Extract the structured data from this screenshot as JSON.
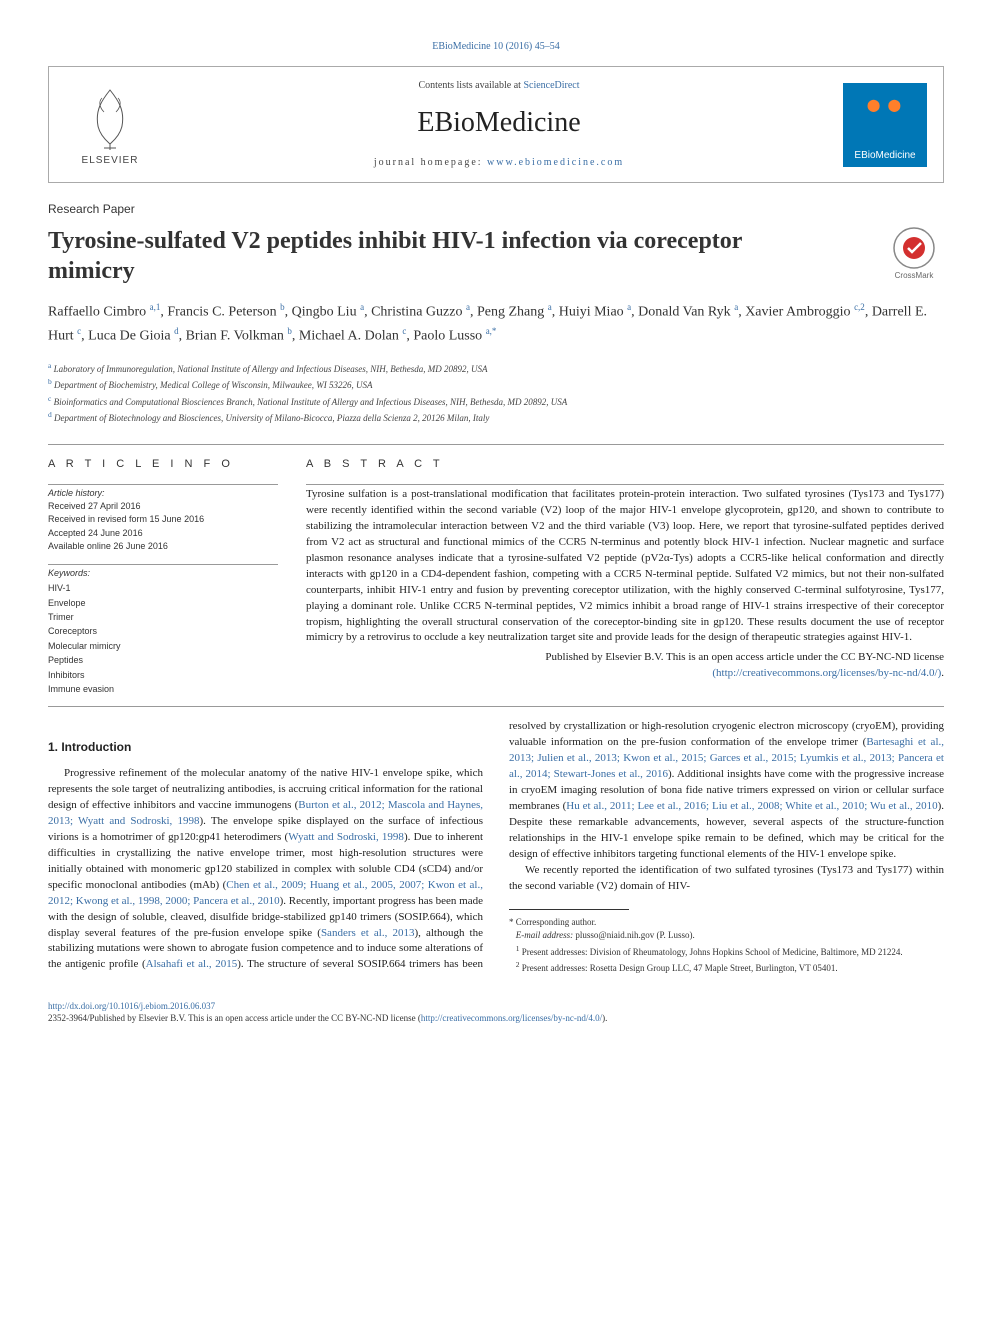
{
  "header": {
    "citation": "EBioMedicine 10 (2016) 45–54"
  },
  "masthead": {
    "contents_prefix": "Contents lists available at ",
    "contents_link": "ScienceDirect",
    "journal": "EBioMedicine",
    "homepage_prefix": "journal homepage: ",
    "homepage_link": "www.ebiomedicine.com",
    "publisher": "ELSEVIER",
    "logo_label": "EBioMedicine"
  },
  "article": {
    "type": "Research Paper",
    "title": "Tyrosine-sulfated V2 peptides inhibit HIV-1 infection via coreceptor mimicry",
    "crossmark": "CrossMark"
  },
  "authors_html": "Raffaello Cimbro <sup>a,1</sup>, Francis C. Peterson <sup>b</sup>, Qingbo Liu <sup>a</sup>, Christina Guzzo <sup>a</sup>, Peng Zhang <sup>a</sup>, Huiyi Miao <sup>a</sup>, Donald Van Ryk <sup>a</sup>, Xavier Ambroggio <sup>c,2</sup>, Darrell E. Hurt <sup>c</sup>, Luca De Gioia <sup>d</sup>, Brian F. Volkman <sup>b</sup>, Michael A. Dolan <sup>c</sup>, Paolo Lusso <sup>a,*</sup>",
  "affiliations": [
    {
      "key": "a",
      "text": "Laboratory of Immunoregulation, National Institute of Allergy and Infectious Diseases, NIH, Bethesda, MD 20892, USA"
    },
    {
      "key": "b",
      "text": "Department of Biochemistry, Medical College of Wisconsin, Milwaukee, WI 53226, USA"
    },
    {
      "key": "c",
      "text": "Bioinformatics and Computational Biosciences Branch, National Institute of Allergy and Infectious Diseases, NIH, Bethesda, MD 20892, USA"
    },
    {
      "key": "d",
      "text": "Department of Biotechnology and Biosciences, University of Milano-Bicocca, Piazza della Scienza 2, 20126 Milan, Italy"
    }
  ],
  "article_info": {
    "heading": "A R T I C L E   I N F O",
    "history_label": "Article history:",
    "history": "Received 27 April 2016\nReceived in revised form 15 June 2016\nAccepted 24 June 2016\nAvailable online 26 June 2016",
    "keywords_label": "Keywords:",
    "keywords": [
      "HIV-1",
      "Envelope",
      "Trimer",
      "Coreceptors",
      "Molecular mimicry",
      "Peptides",
      "Inhibitors",
      "Immune evasion"
    ]
  },
  "abstract": {
    "heading": "A B S T R A C T",
    "text": "Tyrosine sulfation is a post-translational modification that facilitates protein-protein interaction. Two sulfated tyrosines (Tys173 and Tys177) were recently identified within the second variable (V2) loop of the major HIV-1 envelope glycoprotein, gp120, and shown to contribute to stabilizing the intramolecular interaction between V2 and the third variable (V3) loop. Here, we report that tyrosine-sulfated peptides derived from V2 act as structural and functional mimics of the CCR5 N-terminus and potently block HIV-1 infection. Nuclear magnetic and surface plasmon resonance analyses indicate that a tyrosine-sulfated V2 peptide (pV2α-Tys) adopts a CCR5-like helical conformation and directly interacts with gp120 in a CD4-dependent fashion, competing with a CCR5 N-terminal peptide. Sulfated V2 mimics, but not their non-sulfated counterparts, inhibit HIV-1 entry and fusion by preventing coreceptor utilization, with the highly conserved C-terminal sulfotyrosine, Tys177, playing a dominant role. Unlike CCR5 N-terminal peptides, V2 mimics inhibit a broad range of HIV-1 strains irrespective of their coreceptor tropism, highlighting the overall structural conservation of the coreceptor-binding site in gp120. These results document the use of receptor mimicry by a retrovirus to occlude a key neutralization target site and provide leads for the design of therapeutic strategies against HIV-1.",
    "license_line1": "Published by Elsevier B.V. This is an open access article under the CC BY-NC-ND license",
    "license_link_text": "(http://creativecommons.org/licenses/by-nc-nd/4.0/)",
    "license_suffix": "."
  },
  "section1": {
    "heading": "1. Introduction",
    "p1": "Progressive refinement of the molecular anatomy of the native HIV-1 envelope spike, which represents the sole target of neutralizing antibodies, is accruing critical information for the rational design of effective inhibitors and vaccine immunogens (",
    "p1_link1": "Burton et al., 2012; Mascola and Haynes, 2013; Wyatt and Sodroski, 1998",
    "p1_cont1": "). The envelope spike displayed on the surface of infectious virions is a homotrimer of gp120:gp41 heterodimers (",
    "p1_link2": "Wyatt and Sodroski, 1998",
    "p1_cont2": "). Due to inherent difficulties in crystallizing the native envelope trimer, most high-resolution structures were initially obtained with monomeric gp120 stabilized in complex with soluble CD4 (sCD4) and/or specific monoclonal antibodies (mAb) (",
    "p1_link3": "Chen et al., 2009; Huang et al., 2005, 2007; Kwon et al., 2012; Kwong et al., 1998, 2000; Pancera et al., 2010",
    "p1_cont3": "). Recently, important progress has been ",
    "p2_a": "made with the design of soluble, cleaved, disulfide bridge-stabilized gp140 trimers (SOSIP.664), which display several features of the pre-fusion envelope spike (",
    "p2_link1": "Sanders et al., 2013",
    "p2_b": "), although the stabilizing mutations were shown to abrogate fusion competence and to induce some alterations of the antigenic profile (",
    "p2_link2": "Alsahafi et al., 2015",
    "p2_c": "). The structure of several SOSIP.664 trimers has been resolved by crystallization or high-resolution cryogenic electron microscopy (cryoEM), providing valuable information on the pre-fusion conformation of the envelope trimer (",
    "p2_link3": "Bartesaghi et al., 2013; Julien et al., 2013; Kwon et al., 2015; Garces et al., 2015; Lyumkis et al., 2013; Pancera et al., 2014; Stewart-Jones et al., 2016",
    "p2_d": "). Additional insights have come with the progressive increase in cryoEM imaging resolution of bona fide native trimers expressed on virion or cellular surface membranes (",
    "p2_link4": "Hu et al., 2011; Lee et al., 2016; Liu et al., 2008; White et al., 2010; Wu et al., 2010",
    "p2_e": "). Despite these remarkable advancements, however, several aspects of the structure-function relationships in the HIV-1 envelope spike remain to be defined, which may be critical for the design of effective inhibitors targeting functional elements of the HIV-1 envelope spike.",
    "p3": "We recently reported the identification of two sulfated tyrosines (Tys173 and Tys177) within the second variable (V2) domain of HIV-"
  },
  "footnotes": {
    "corr": "*  Corresponding author.",
    "email_label": "E-mail address: ",
    "email": "plusso@niaid.nih.gov",
    "email_who": " (P. Lusso).",
    "n1": "Present addresses: Division of Rheumatology, Johns Hopkins School of Medicine, Baltimore, MD 21224.",
    "n2": "Present addresses: Rosetta Design Group LLC, 47 Maple Street, Burlington, VT 05401."
  },
  "footer": {
    "doi": "http://dx.doi.org/10.1016/j.ebiom.2016.06.037",
    "copyright": "2352-3964/Published by Elsevier B.V. This is an open access article under the CC BY-NC-ND license (",
    "cc_link": "http://creativecommons.org/licenses/by-nc-nd/4.0/",
    "copyright_end": ")."
  },
  "colors": {
    "link": "#3a6ea5",
    "logo_bg": "#0077b6",
    "logo_accent": "#ff7f2a"
  }
}
